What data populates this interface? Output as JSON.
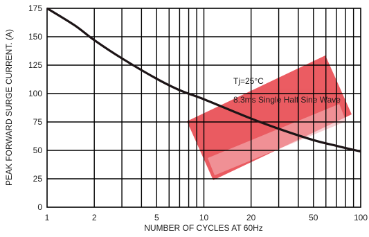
{
  "chart_data": {
    "type": "line",
    "xlabel": "NUMBER OF CYCLES AT 60Hz",
    "ylabel": "PEAK FORWARD SURGE CURRENT. (A)",
    "xscale": "log",
    "xlim": [
      1,
      100
    ],
    "ylim": [
      0,
      175
    ],
    "xticks": [
      1,
      2,
      5,
      10,
      20,
      50,
      100
    ],
    "xtick_labels": [
      "1",
      "2",
      "5",
      "10",
      "20",
      "50",
      "100"
    ],
    "yticks": [
      0,
      25,
      50,
      75,
      100,
      125,
      150,
      175
    ],
    "ytick_labels": [
      "0",
      "25",
      "50",
      "75",
      "100",
      "125",
      "150",
      "175"
    ],
    "grid": true,
    "series": [
      {
        "x": [
          1,
          1.5,
          2,
          3,
          5,
          7,
          10,
          15,
          20,
          30,
          50,
          70,
          100
        ],
        "y": [
          175,
          160,
          147,
          131,
          113,
          103,
          95,
          85,
          78,
          69,
          59,
          54,
          49
        ]
      }
    ],
    "annotations": [
      "Tj=25°C",
      "8.3ms Single Half Sine Wave"
    ],
    "colors": {
      "curve": "#1c1416",
      "grid": "#000000",
      "watermark": "#e53a40"
    }
  }
}
